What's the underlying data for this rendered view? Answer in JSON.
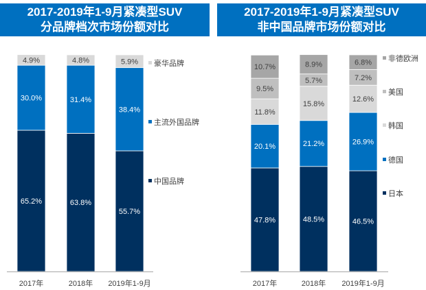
{
  "chart_data": [
    {
      "type": "bar",
      "stacked": true,
      "title": [
        "2017-2019年1-9月紧凑型SUV",
        "分品牌档次市场份额对比"
      ],
      "categories": [
        "2017年",
        "2018年",
        "2019年1-9月"
      ],
      "series": [
        {
          "name": "中国品牌",
          "values": [
            65.2,
            63.8,
            55.7
          ],
          "color": "#00305F",
          "label_color": "#FFFFFF"
        },
        {
          "name": "主流外国品牌",
          "values": [
            30.0,
            31.4,
            38.4
          ],
          "color": "#0070C0",
          "label_color": "#FFFFFF"
        },
        {
          "name": "豪华品牌",
          "values": [
            4.9,
            4.8,
            5.9
          ],
          "color": "#D9D9D9",
          "label_color": "#404040"
        }
      ],
      "unit": "%",
      "legend": "right",
      "grid": false
    },
    {
      "type": "bar",
      "stacked": true,
      "title": [
        "2017-2019年1-9月紧凑型SUV",
        "非中国品牌市场份额对比"
      ],
      "categories": [
        "2017年",
        "2018年",
        "2019年1-9月"
      ],
      "series": [
        {
          "name": "日本",
          "values": [
            47.8,
            48.5,
            46.5
          ],
          "color": "#00305F",
          "label_color": "#FFFFFF"
        },
        {
          "name": "德国",
          "values": [
            20.1,
            21.2,
            26.9
          ],
          "color": "#0070C0",
          "label_color": "#FFFFFF"
        },
        {
          "name": "韩国",
          "values": [
            11.8,
            15.8,
            12.6
          ],
          "color": "#D9D9D9",
          "label_color": "#404040"
        },
        {
          "name": "美国",
          "values": [
            9.5,
            5.7,
            7.2
          ],
          "color": "#BFBFBF",
          "label_color": "#404040"
        },
        {
          "name": "非德欧洲",
          "values": [
            10.7,
            8.9,
            6.8
          ],
          "color": "#A6A6A6",
          "label_color": "#404040"
        }
      ],
      "unit": "%",
      "legend": "right",
      "grid": false
    }
  ]
}
